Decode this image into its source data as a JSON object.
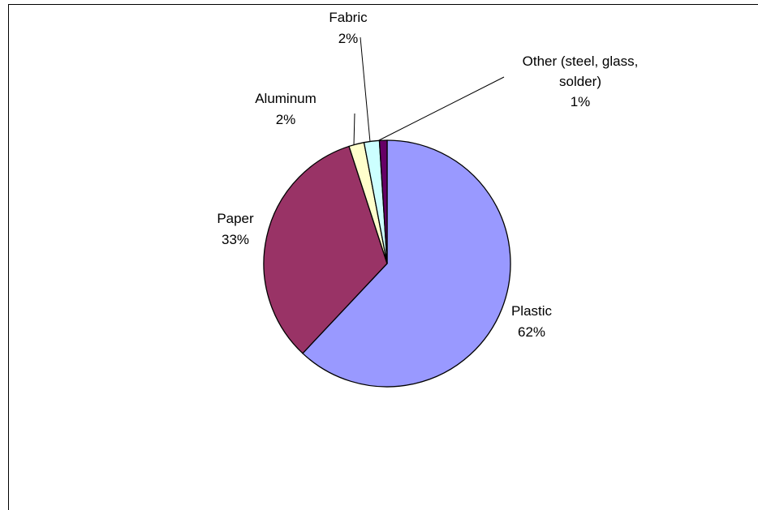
{
  "chart_data": {
    "type": "pie",
    "title": "",
    "start_angle_deg": 0,
    "direction": "clockwise",
    "legend": "none",
    "slices": [
      {
        "name": "Plastic",
        "value": 62,
        "label_pct": "62%",
        "color": "#9999ff",
        "label_lines": [
          "Plastic",
          "62%"
        ]
      },
      {
        "name": "Paper",
        "value": 33,
        "label_pct": "33%",
        "color": "#993366",
        "label_lines": [
          "Paper",
          "33%"
        ]
      },
      {
        "name": "Aluminum",
        "value": 2,
        "label_pct": "2%",
        "color": "#ffffcc",
        "label_lines": [
          "Aluminum",
          "2%"
        ]
      },
      {
        "name": "Fabric",
        "value": 2,
        "label_pct": "2%",
        "color": "#ccffff",
        "label_lines": [
          "Fabric",
          "2%"
        ]
      },
      {
        "name": "Other (steel, glass, solder)",
        "value": 1,
        "label_pct": "1%",
        "color": "#660066",
        "label_lines": [
          "Other (steel, glass,",
          "solder)",
          "1%"
        ]
      }
    ]
  }
}
